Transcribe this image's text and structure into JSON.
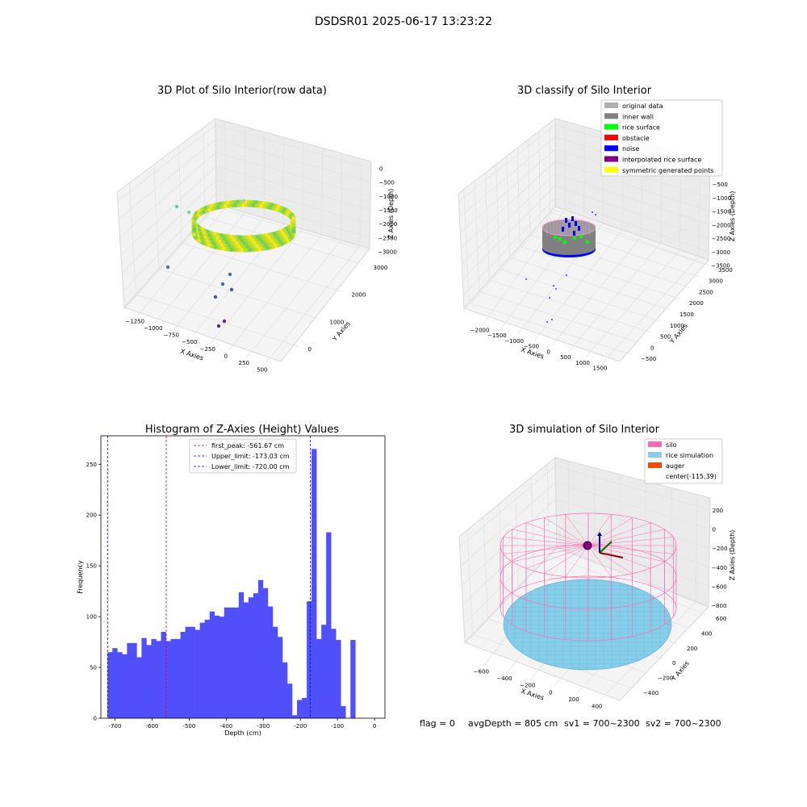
{
  "suptitle": "DSDSR01 2025-06-17 13:23:22",
  "footer": {
    "flag": "flag = 0",
    "avg_depth": "avgDepth = 805 cm",
    "sv1": "sv1 = 700~2300",
    "sv2": "sv2 = 700~2300"
  },
  "colors": {
    "hist_bar": "#4f4ffc",
    "first_peak_line": "#e60000",
    "limit_line": "#0000cc",
    "silo": "#ff69b4",
    "rice_simulation": "#87ceeb",
    "auger": "#ff4500",
    "original_data": "#b0b0b0",
    "inner_wall": "#808080",
    "rice_surface": "#00ff00",
    "obstacle": "#ff0000",
    "noise": "#0000ff",
    "interpolated_rice_surface": "#800080",
    "symmetric_generated_points": "#ffff00"
  },
  "chart_data": [
    {
      "type": "scatter",
      "subtype": "3d",
      "title": "3D Plot of Silo Interior(row data)",
      "xlabel": "X Axies",
      "ylabel": "Y Axies",
      "zlabel": "Z Axies (Depth)",
      "x_ticks": [
        "−1250",
        "−1000",
        "−750",
        "−500",
        "−250",
        "0",
        "250",
        "500"
      ],
      "y_ticks": [
        "0",
        "1000",
        "2000",
        "3000"
      ],
      "z_ticks": [
        "0",
        "−500",
        "−1000",
        "−1500",
        "−2000",
        "−2500",
        "−3000"
      ],
      "colormap": "viridis by depth"
    },
    {
      "type": "scatter",
      "subtype": "3d",
      "title": "3D classify of Silo Interior",
      "xlabel": "X Axies",
      "ylabel": "Y Axies",
      "zlabel": "Z Axies (Depth)",
      "x_ticks": [
        "−2000",
        "−1500",
        "−1000",
        "−500",
        "0",
        "500",
        "1000",
        "1500"
      ],
      "y_ticks": [
        "−500",
        "0",
        "500",
        "1000",
        "1500",
        "2000",
        "2500",
        "3000",
        "3500"
      ],
      "z_ticks": [
        "0",
        "−500",
        "−1000",
        "−1500",
        "−2000",
        "−2500",
        "−3000",
        "−3500"
      ],
      "legend": [
        "original data",
        "inner wall",
        "rice surface",
        "obstacle",
        "noise",
        "interpolated rice surface",
        "symmetric generated points"
      ],
      "legend_colors": [
        "#b0b0b0",
        "#808080",
        "#00ff00",
        "#ff0000",
        "#0000ff",
        "#800080",
        "#ffff00"
      ],
      "legend_position": "top-right"
    },
    {
      "type": "bar",
      "subtype": "histogram",
      "title": "Histogram of Z-Axies (Height) Values",
      "xlabel": "Depth (cm)",
      "ylabel": "Frequency",
      "xlim": [
        -738,
        28
      ],
      "ylim": [
        0,
        278
      ],
      "x_ticks": [
        -700,
        -600,
        -500,
        -400,
        -300,
        -200,
        -100,
        0
      ],
      "y_ticks": [
        0,
        50,
        100,
        150,
        200,
        250
      ],
      "bin_start": -720,
      "bin_width": 13.1,
      "values": [
        65,
        69,
        65,
        63,
        74,
        74,
        60,
        79,
        72,
        78,
        76,
        85,
        76,
        78,
        78,
        85,
        90,
        90,
        87,
        94,
        97,
        105,
        101,
        100,
        109,
        109,
        109,
        124,
        114,
        119,
        123,
        136,
        128,
        110,
        90,
        80,
        55,
        34,
        3,
        18,
        20,
        115,
        265,
        78,
        92,
        183,
        88,
        77,
        12,
        0,
        77
      ],
      "vlines": [
        {
          "x": -561.67,
          "label": "first_peak: -561.67 cm",
          "color": "#e60000"
        },
        {
          "x": -173.03,
          "label": "Upper_limit: -173.03 cm",
          "color": "#0000cc"
        },
        {
          "x": -720.0,
          "label": "Lower_limit: -720.00 cm",
          "color": "#0000cc"
        }
      ],
      "legend_position": "top-center"
    },
    {
      "type": "scatter",
      "subtype": "3d",
      "title": "3D simulation of Silo Interior",
      "xlabel": "X Axies",
      "ylabel": "Y Axies",
      "zlabel": "Z Axies (Depth)",
      "x_ticks": [
        "−600",
        "−400",
        "−200",
        "0",
        "200",
        "400"
      ],
      "y_ticks": [
        "−400",
        "−200",
        "0",
        "200",
        "400",
        "600"
      ],
      "z_ticks": [
        "200",
        "0",
        "−200",
        "−400",
        "−600",
        "−800"
      ],
      "legend": [
        "silo",
        "rice simulation",
        "auger",
        "center(-115,39)"
      ],
      "legend_colors": [
        "#ff69b4",
        "#87ceeb",
        "#ff4500",
        ""
      ],
      "legend_position": "top-right"
    }
  ]
}
